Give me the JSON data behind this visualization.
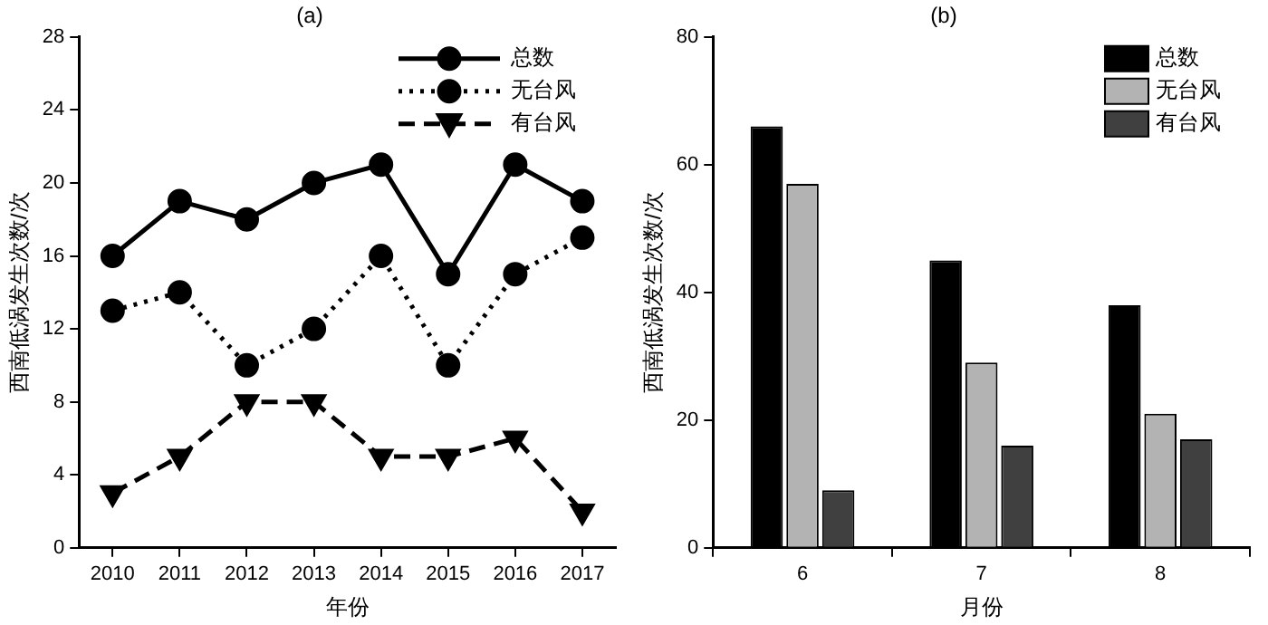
{
  "chart_data": [
    {
      "type": "line",
      "title": "(a)",
      "xlabel": "年份",
      "ylabel": "西南低涡发生次数/次",
      "categories": [
        "2010",
        "2011",
        "2012",
        "2013",
        "2014",
        "2015",
        "2016",
        "2017"
      ],
      "ylim": [
        0,
        28
      ],
      "yticks": [
        0,
        4,
        8,
        12,
        16,
        20,
        24,
        28
      ],
      "grid": false,
      "legend": "top right",
      "series": [
        {
          "name": "总数",
          "color": "#000000",
          "marker": "circle",
          "line_style": "solid",
          "values": [
            16,
            19,
            18,
            20,
            21,
            15,
            21,
            19
          ]
        },
        {
          "name": "无台风",
          "color": "#000000",
          "marker": "circle",
          "line_style": "dotted",
          "values": [
            13,
            14,
            10,
            12,
            16,
            10,
            15,
            17
          ]
        },
        {
          "name": "有台风",
          "color": "#000000",
          "marker": "triangle",
          "line_style": "dashed",
          "values": [
            3,
            5,
            8,
            8,
            5,
            5,
            6,
            2
          ]
        }
      ]
    },
    {
      "type": "bar",
      "title": "(b)",
      "xlabel": "月份",
      "ylabel": "西南低涡发生次数/次",
      "categories": [
        "6",
        "7",
        "8"
      ],
      "ylim": [
        0,
        80
      ],
      "yticks": [
        0,
        20,
        40,
        60,
        80
      ],
      "grid": false,
      "legend": "top right",
      "series": [
        {
          "name": "总数",
          "color": "#000000",
          "values": [
            66,
            45,
            38
          ]
        },
        {
          "name": "无台风",
          "color": "#b3b3b3",
          "values": [
            57,
            29,
            21
          ]
        },
        {
          "name": "有台风",
          "color": "#404040",
          "values": [
            9,
            16,
            17
          ]
        }
      ]
    }
  ]
}
